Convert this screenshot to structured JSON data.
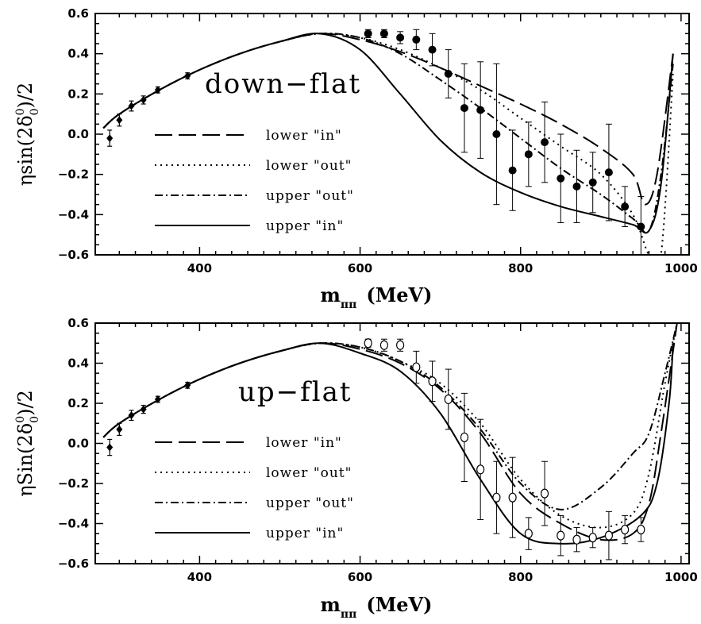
{
  "chart_data": [
    {
      "type": "line",
      "panel_label": "down−flat",
      "xlabel": "m",
      "xlabel_sub": "ππ",
      "xlabel_unit": "(MeV)",
      "ylabel": "ηsin(2δ",
      "ylabel_sup": "0",
      "ylabel_sub": "0",
      "ylabel_tail": ")/2",
      "xlim": [
        270,
        1010
      ],
      "ylim": [
        -0.6,
        0.6
      ],
      "xticks": [
        {
          "v": 400,
          "label": "400"
        },
        {
          "v": 600,
          "label": "600"
        },
        {
          "v": 800,
          "label": "800"
        },
        {
          "v": 1000,
          "label": "1000"
        }
      ],
      "yticks": [
        {
          "v": 0.6,
          "label": "0.6"
        },
        {
          "v": 0.4,
          "label": "0.4"
        },
        {
          "v": 0.2,
          "label": "0.2"
        },
        {
          "v": 0.0,
          "label": "0.0"
        },
        {
          "v": -0.2,
          "label": "−0.2"
        },
        {
          "v": -0.4,
          "label": "−0.4"
        },
        {
          "v": -0.6,
          "label": "−0.6"
        }
      ],
      "legend": [
        "lower \"in\"",
        "lower \"out\"",
        "upper \"out\"",
        "upper \"in\""
      ],
      "series": [
        {
          "name": "lower \"in\"",
          "dash": "long",
          "x": [
            280,
            300,
            350,
            400,
            450,
            500,
            550,
            600,
            650,
            700,
            750,
            800,
            850,
            900,
            940,
            955,
            970,
            990
          ],
          "y": [
            0.03,
            0.1,
            0.22,
            0.32,
            0.4,
            0.46,
            0.5,
            0.47,
            0.41,
            0.33,
            0.24,
            0.15,
            0.05,
            -0.07,
            -0.2,
            -0.35,
            -0.2,
            0.4
          ]
        },
        {
          "name": "lower \"out\"",
          "dash": "dot",
          "x": [
            280,
            300,
            350,
            400,
            450,
            500,
            550,
            600,
            650,
            700,
            750,
            800,
            850,
            900,
            940,
            960,
            975,
            990
          ],
          "y": [
            0.03,
            0.1,
            0.22,
            0.32,
            0.4,
            0.46,
            0.5,
            0.48,
            0.42,
            0.33,
            0.22,
            0.08,
            -0.06,
            -0.2,
            -0.4,
            -0.6,
            -0.6,
            0.3
          ]
        },
        {
          "name": "upper \"out\"",
          "dash": "dashdot",
          "x": [
            280,
            300,
            350,
            400,
            450,
            500,
            550,
            600,
            650,
            700,
            750,
            800,
            850,
            900,
            940,
            960,
            975,
            990
          ],
          "y": [
            0.03,
            0.1,
            0.22,
            0.32,
            0.4,
            0.46,
            0.5,
            0.48,
            0.4,
            0.27,
            0.13,
            -0.02,
            -0.17,
            -0.3,
            -0.42,
            -0.48,
            -0.2,
            0.35
          ]
        },
        {
          "name": "upper \"in\"",
          "dash": "solid",
          "x": [
            280,
            300,
            350,
            400,
            450,
            500,
            550,
            600,
            650,
            700,
            750,
            800,
            850,
            900,
            940,
            960,
            975,
            990
          ],
          "y": [
            0.03,
            0.1,
            0.22,
            0.32,
            0.4,
            0.46,
            0.5,
            0.42,
            0.2,
            -0.03,
            -0.19,
            -0.29,
            -0.36,
            -0.41,
            -0.45,
            -0.48,
            -0.25,
            0.4
          ]
        }
      ],
      "points_small": {
        "x": [
          288,
          300,
          315,
          330,
          348,
          385
        ],
        "y": [
          -0.02,
          0.07,
          0.14,
          0.17,
          0.22,
          0.29
        ],
        "err": [
          0.04,
          0.03,
          0.025,
          0.02,
          0.015,
          0.015
        ]
      },
      "points_large": {
        "filled": true,
        "x": [
          610,
          630,
          650,
          670,
          690,
          710,
          730,
          750,
          770,
          790,
          810,
          830,
          850,
          870,
          890,
          910,
          930,
          950
        ],
        "y": [
          0.5,
          0.5,
          0.48,
          0.47,
          0.42,
          0.3,
          0.13,
          0.12,
          -0.0,
          -0.18,
          -0.1,
          -0.04,
          -0.22,
          -0.26,
          -0.24,
          -0.19,
          -0.36,
          -0.46
        ],
        "err": [
          0.02,
          0.02,
          0.03,
          0.05,
          0.08,
          0.12,
          0.22,
          0.24,
          0.35,
          0.2,
          0.16,
          0.2,
          0.22,
          0.18,
          0.15,
          0.24,
          0.1,
          0.15
        ]
      }
    },
    {
      "type": "line",
      "panel_label": "up−flat",
      "xlabel": "m",
      "xlabel_sub": "ππ",
      "xlabel_unit": "(MeV)",
      "ylabel": "ηSin(2δ",
      "ylabel_sup": "0",
      "ylabel_sub": "0",
      "ylabel_tail": ")/2",
      "xlim": [
        270,
        1010
      ],
      "ylim": [
        -0.6,
        0.6
      ],
      "xticks": [
        {
          "v": 400,
          "label": "400"
        },
        {
          "v": 600,
          "label": "600"
        },
        {
          "v": 800,
          "label": "800"
        },
        {
          "v": 1000,
          "label": "1000"
        }
      ],
      "yticks": [
        {
          "v": 0.6,
          "label": "0.6"
        },
        {
          "v": 0.4,
          "label": "0.4"
        },
        {
          "v": 0.2,
          "label": "0.2"
        },
        {
          "v": 0.0,
          "label": "0.0"
        },
        {
          "v": -0.2,
          "label": "−0.2"
        },
        {
          "v": -0.4,
          "label": "−0.4"
        },
        {
          "v": -0.6,
          "label": "−0.6"
        }
      ],
      "legend": [
        "lower \"in\"",
        "lower \"out\"",
        "upper \"out\"",
        "upper \"in\""
      ],
      "series": [
        {
          "name": "lower \"in\"",
          "dash": "long",
          "x": [
            280,
            300,
            350,
            400,
            450,
            500,
            550,
            600,
            650,
            700,
            750,
            800,
            850,
            900,
            940,
            960,
            975,
            995
          ],
          "y": [
            0.03,
            0.1,
            0.22,
            0.32,
            0.4,
            0.46,
            0.5,
            0.47,
            0.4,
            0.27,
            0.05,
            -0.25,
            -0.4,
            -0.48,
            -0.45,
            -0.3,
            0.05,
            0.6
          ]
        },
        {
          "name": "lower \"out\"",
          "dash": "dot",
          "x": [
            280,
            300,
            350,
            400,
            450,
            500,
            550,
            600,
            650,
            700,
            750,
            800,
            850,
            900,
            940,
            960,
            980,
            995
          ],
          "y": [
            0.03,
            0.1,
            0.22,
            0.32,
            0.4,
            0.46,
            0.5,
            0.48,
            0.41,
            0.3,
            0.1,
            -0.18,
            -0.36,
            -0.42,
            -0.35,
            -0.15,
            0.3,
            0.6
          ]
        },
        {
          "name": "upper \"out\"",
          "dash": "dashdot",
          "x": [
            280,
            300,
            350,
            400,
            450,
            500,
            550,
            600,
            650,
            700,
            750,
            800,
            850,
            900,
            940,
            960,
            980,
            995
          ],
          "y": [
            0.03,
            0.1,
            0.22,
            0.32,
            0.4,
            0.46,
            0.5,
            0.48,
            0.41,
            0.28,
            0.07,
            -0.2,
            -0.33,
            -0.22,
            -0.05,
            0.05,
            0.35,
            0.6
          ]
        },
        {
          "name": "upper \"in\"",
          "dash": "solid",
          "x": [
            280,
            300,
            350,
            400,
            450,
            500,
            550,
            600,
            650,
            700,
            750,
            800,
            850,
            900,
            950,
            970,
            985,
            990
          ],
          "y": [
            0.03,
            0.1,
            0.22,
            0.32,
            0.4,
            0.46,
            0.5,
            0.45,
            0.36,
            0.15,
            -0.18,
            -0.45,
            -0.5,
            -0.47,
            -0.36,
            -0.2,
            0.2,
            0.5
          ]
        }
      ],
      "points_small": {
        "x": [
          288,
          300,
          315,
          330,
          348,
          385
        ],
        "y": [
          -0.02,
          0.07,
          0.14,
          0.17,
          0.22,
          0.29
        ],
        "err": [
          0.04,
          0.03,
          0.025,
          0.02,
          0.015,
          0.015
        ]
      },
      "points_large": {
        "filled": false,
        "x": [
          610,
          630,
          650,
          670,
          690,
          710,
          730,
          750,
          770,
          790,
          810,
          830,
          850,
          870,
          890,
          910,
          930,
          950
        ],
        "y": [
          0.5,
          0.49,
          0.49,
          0.38,
          0.31,
          0.22,
          0.03,
          -0.13,
          -0.27,
          -0.27,
          -0.45,
          -0.25,
          -0.46,
          -0.48,
          -0.47,
          -0.46,
          -0.43,
          -0.43
        ],
        "err": [
          0.02,
          0.03,
          0.03,
          0.08,
          0.1,
          0.15,
          0.22,
          0.25,
          0.18,
          0.2,
          0.08,
          0.16,
          0.1,
          0.06,
          0.05,
          0.12,
          0.07,
          0.06
        ]
      }
    }
  ]
}
